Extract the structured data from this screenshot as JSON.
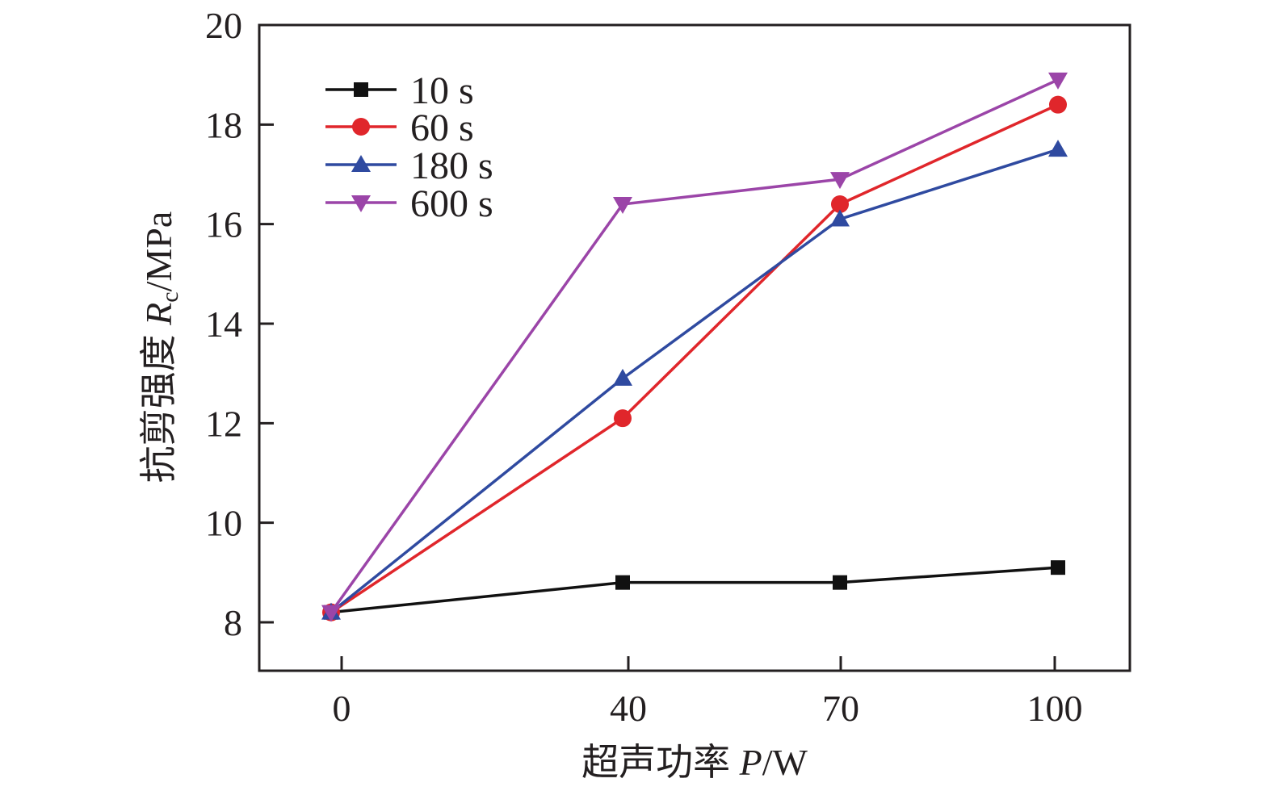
{
  "chart_data": {
    "type": "line",
    "title": "",
    "xlabel_text": "超声功率 ",
    "xlabel_var": "P",
    "xlabel_unit": "/W",
    "ylabel_text": "抗剪强度 ",
    "ylabel_var": "R",
    "ylabel_sub": "c",
    "ylabel_unit": "/MPa",
    "categories": [
      "0",
      "40",
      "70",
      "100"
    ],
    "x": [
      0,
      40,
      70,
      100
    ],
    "ylim": [
      7,
      20
    ],
    "yticks": [
      8,
      10,
      12,
      14,
      16,
      18,
      20
    ],
    "ytick_labels": [
      "8",
      "10",
      "12",
      "14",
      "16",
      "18",
      "20"
    ],
    "grid": false,
    "legend_position": "top-left",
    "series": [
      {
        "name": "10 s",
        "values": [
          8.2,
          8.8,
          8.8,
          9.1
        ],
        "color": "#111111",
        "marker": "square"
      },
      {
        "name": "60 s",
        "values": [
          8.2,
          12.1,
          16.4,
          18.4
        ],
        "color": "#e0262b",
        "marker": "circle"
      },
      {
        "name": "180 s",
        "values": [
          8.2,
          12.9,
          16.1,
          17.5
        ],
        "color": "#2f4aa0",
        "marker": "triangle-up"
      },
      {
        "name": "600 s",
        "values": [
          8.2,
          16.4,
          16.9,
          18.9
        ],
        "color": "#9b45a8",
        "marker": "triangle-down"
      }
    ]
  }
}
